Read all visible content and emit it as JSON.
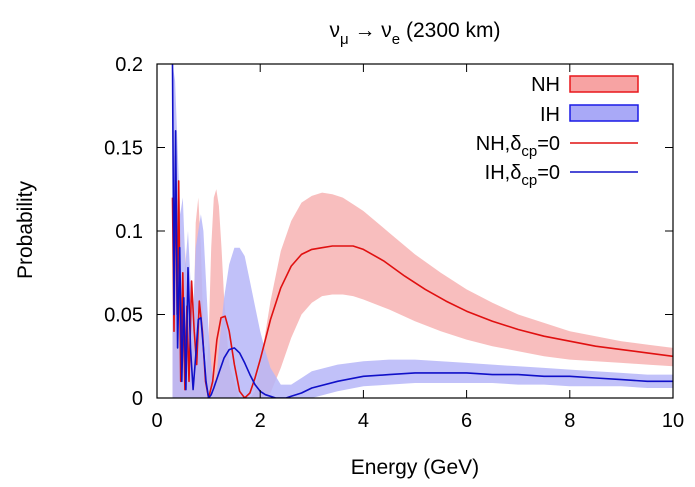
{
  "chart_data": {
    "type": "line",
    "title_main": "ν",
    "title_sub1": "μ",
    "title_arrow": " → ν",
    "title_sub2": "e",
    "title_tail": " (2300 km)",
    "xlabel": "Energy (GeV)",
    "ylabel": "Probability",
    "xlim": [
      0,
      10
    ],
    "ylim": [
      0,
      0.2
    ],
    "x_ticks": [
      0,
      2,
      4,
      6,
      8,
      10
    ],
    "y_ticks": [
      0,
      0.05,
      0.1,
      0.15,
      0.2
    ],
    "x_tick_labels": [
      "0",
      "2",
      "4",
      "6",
      "8",
      "10"
    ],
    "y_tick_labels": [
      "0",
      "0.05",
      "0.1",
      "0.15",
      "0.2"
    ],
    "grid": false,
    "legend_position": "top-right",
    "legend": [
      {
        "label": "NH",
        "kind": "band",
        "fill": "#f7a3a3",
        "stroke": "#e8161b"
      },
      {
        "label": "IH",
        "kind": "band",
        "fill": "#a9a9f7",
        "stroke": "#1a1ae6"
      },
      {
        "label_main": "NH,δ",
        "label_sub": "cp",
        "label_tail": "=0",
        "kind": "line",
        "stroke": "#e01010"
      },
      {
        "label_main": "IH,δ",
        "label_sub": "cp",
        "label_tail": "=0",
        "kind": "line",
        "stroke": "#1010c8"
      }
    ],
    "series": [
      {
        "id": "nh-band",
        "kind": "band",
        "color": "#f7b3b3",
        "x": [
          0.3,
          0.35,
          0.4,
          0.45,
          0.5,
          0.55,
          0.6,
          0.65,
          0.7,
          0.75,
          0.8,
          0.85,
          0.9,
          0.95,
          1.0,
          1.05,
          1.1,
          1.15,
          1.2,
          1.25,
          1.3,
          1.4,
          1.5,
          1.6,
          1.7,
          1.8,
          1.9,
          2.0,
          2.2,
          2.4,
          2.6,
          2.8,
          3.0,
          3.2,
          3.4,
          3.6,
          3.8,
          4.0,
          4.5,
          5.0,
          5.5,
          6.0,
          6.5,
          7.0,
          7.5,
          8.0,
          8.5,
          9.0,
          9.5,
          10.0
        ],
        "lower": [
          0.0,
          0.0,
          0.0,
          0.0,
          0.0,
          0.0,
          0.0,
          0.0,
          0.0,
          0.0,
          0.0,
          0.0,
          0.0,
          0.0,
          0.0,
          0.0,
          0.0,
          0.0,
          0.0,
          0.0,
          0.0,
          0.0,
          0.0,
          0.0,
          0.0,
          0.0,
          0.0,
          0.0,
          0.003,
          0.018,
          0.036,
          0.05,
          0.057,
          0.061,
          0.062,
          0.062,
          0.061,
          0.059,
          0.053,
          0.046,
          0.04,
          0.035,
          0.031,
          0.028,
          0.025,
          0.023,
          0.022,
          0.021,
          0.02,
          0.019
        ],
        "upper": [
          0.155,
          0.135,
          0.03,
          0.11,
          0.02,
          0.09,
          0.02,
          0.06,
          0.03,
          0.105,
          0.12,
          0.09,
          0.04,
          0.01,
          0.035,
          0.09,
          0.12,
          0.125,
          0.115,
          0.09,
          0.06,
          0.02,
          0.01,
          0.0,
          0.0,
          0.0,
          0.004,
          0.02,
          0.058,
          0.088,
          0.106,
          0.117,
          0.121,
          0.123,
          0.122,
          0.12,
          0.116,
          0.112,
          0.099,
          0.086,
          0.075,
          0.065,
          0.057,
          0.05,
          0.045,
          0.04,
          0.037,
          0.034,
          0.032,
          0.03
        ]
      },
      {
        "id": "ih-band",
        "kind": "band",
        "color": "#b6b6f8",
        "x": [
          0.3,
          0.35,
          0.4,
          0.45,
          0.5,
          0.55,
          0.6,
          0.65,
          0.7,
          0.75,
          0.8,
          0.85,
          0.9,
          0.95,
          1.0,
          1.05,
          1.1,
          1.15,
          1.2,
          1.3,
          1.4,
          1.5,
          1.6,
          1.7,
          1.8,
          1.9,
          2.0,
          2.1,
          2.2,
          2.4,
          2.6,
          2.8,
          3.0,
          3.5,
          4.0,
          4.5,
          5.0,
          5.5,
          6.0,
          6.5,
          7.0,
          7.5,
          8.0,
          8.5,
          9.0,
          9.5,
          10.0
        ],
        "lower": [
          0.0,
          0.0,
          0.0,
          0.0,
          0.0,
          0.0,
          0.0,
          0.0,
          0.0,
          0.0,
          0.0,
          0.0,
          0.0,
          0.0,
          0.0,
          0.0,
          0.0,
          0.0,
          0.0,
          0.0,
          0.0,
          0.0,
          0.0,
          0.0,
          0.0,
          0.0,
          0.0,
          0.0,
          0.0,
          0.0,
          0.0,
          0.0,
          0.0,
          0.004,
          0.007,
          0.008,
          0.009,
          0.009,
          0.009,
          0.009,
          0.008,
          0.008,
          0.007,
          0.007,
          0.007,
          0.006,
          0.006
        ],
        "upper": [
          0.2,
          0.19,
          0.15,
          0.11,
          0.12,
          0.08,
          0.1,
          0.07,
          0.05,
          0.09,
          0.1,
          0.11,
          0.1,
          0.07,
          0.04,
          0.02,
          0.01,
          0.01,
          0.03,
          0.06,
          0.08,
          0.09,
          0.09,
          0.085,
          0.07,
          0.055,
          0.04,
          0.028,
          0.018,
          0.008,
          0.008,
          0.012,
          0.016,
          0.02,
          0.022,
          0.023,
          0.023,
          0.022,
          0.021,
          0.02,
          0.019,
          0.018,
          0.017,
          0.016,
          0.015,
          0.014,
          0.014
        ]
      },
      {
        "id": "nh-line",
        "kind": "line",
        "color": "#e01010",
        "x": [
          0.3,
          0.33,
          0.36,
          0.39,
          0.42,
          0.46,
          0.5,
          0.54,
          0.58,
          0.62,
          0.67,
          0.72,
          0.77,
          0.82,
          0.88,
          0.94,
          1.0,
          1.08,
          1.16,
          1.24,
          1.32,
          1.4,
          1.5,
          1.6,
          1.7,
          1.8,
          1.9,
          2.0,
          2.1,
          2.2,
          2.4,
          2.6,
          2.8,
          3.0,
          3.2,
          3.4,
          3.6,
          3.8,
          4.0,
          4.4,
          4.8,
          5.2,
          5.6,
          6.0,
          6.5,
          7.0,
          7.5,
          8.0,
          8.5,
          9.0,
          9.5,
          10.0
        ],
        "y": [
          0.12,
          0.04,
          0.145,
          0.05,
          0.13,
          0.01,
          0.075,
          0.005,
          0.055,
          0.01,
          0.07,
          0.04,
          0.02,
          0.058,
          0.04,
          0.01,
          0.0,
          0.01,
          0.035,
          0.048,
          0.049,
          0.04,
          0.02,
          0.004,
          0.0,
          0.003,
          0.012,
          0.023,
          0.035,
          0.047,
          0.066,
          0.079,
          0.086,
          0.089,
          0.09,
          0.091,
          0.091,
          0.091,
          0.089,
          0.082,
          0.073,
          0.065,
          0.058,
          0.052,
          0.046,
          0.041,
          0.037,
          0.034,
          0.031,
          0.029,
          0.027,
          0.025
        ]
      },
      {
        "id": "ih-line",
        "kind": "line",
        "color": "#1010c8",
        "x": [
          0.3,
          0.33,
          0.36,
          0.4,
          0.44,
          0.48,
          0.52,
          0.56,
          0.6,
          0.65,
          0.7,
          0.75,
          0.8,
          0.85,
          0.9,
          0.95,
          1.0,
          1.05,
          1.1,
          1.2,
          1.3,
          1.4,
          1.5,
          1.6,
          1.7,
          1.8,
          1.9,
          2.0,
          2.1,
          2.2,
          2.3,
          2.4,
          2.5,
          2.6,
          2.8,
          3.0,
          3.5,
          4.0,
          4.5,
          5.0,
          5.5,
          6.0,
          6.5,
          7.0,
          7.5,
          8.0,
          8.5,
          9.0,
          9.5,
          10.0
        ],
        "y": [
          0.2,
          0.05,
          0.16,
          0.03,
          0.09,
          0.01,
          0.06,
          0.005,
          0.078,
          0.03,
          0.005,
          0.025,
          0.047,
          0.048,
          0.03,
          0.01,
          0.0,
          0.002,
          0.006,
          0.015,
          0.024,
          0.029,
          0.03,
          0.027,
          0.021,
          0.014,
          0.008,
          0.004,
          0.002,
          0.001,
          0.0,
          0.0,
          0.0,
          0.001,
          0.003,
          0.006,
          0.01,
          0.013,
          0.014,
          0.015,
          0.015,
          0.015,
          0.014,
          0.014,
          0.013,
          0.013,
          0.012,
          0.011,
          0.01,
          0.01
        ]
      }
    ]
  }
}
